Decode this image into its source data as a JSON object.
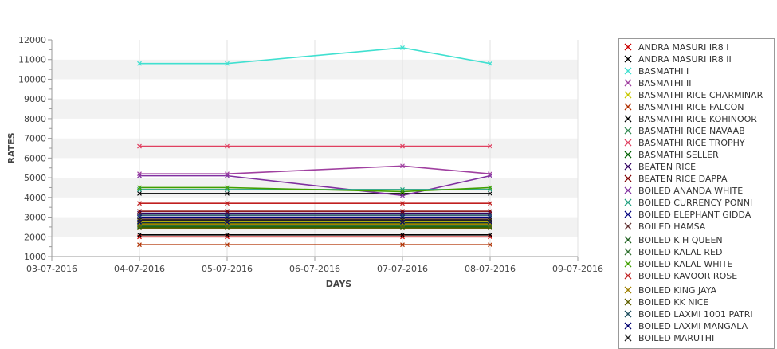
{
  "chart_data": {
    "type": "line",
    "xlabel": "DAYS",
    "ylabel": "RATES",
    "ylim": [
      1000,
      12000
    ],
    "yticks": [
      1000,
      2000,
      3000,
      4000,
      5000,
      6000,
      7000,
      8000,
      9000,
      10000,
      11000,
      12000
    ],
    "x_ticks": [
      "03-07-2016",
      "04-07-2016",
      "05-07-2016",
      "06-07-2016",
      "07-07-2016",
      "08-07-2016",
      "09-07-2016"
    ],
    "xlim": [
      "03-07-2016",
      "09-07-2016"
    ],
    "x": [
      "04-07-2016",
      "05-07-2016",
      "07-07-2016",
      "08-07-2016"
    ],
    "grid": true,
    "legend_position": "right",
    "series": [
      {
        "name": "ANDRA MASURI IR8 I",
        "color": "#cc0000",
        "values": [
          2000,
          2000,
          2000,
          2000
        ]
      },
      {
        "name": "ANDRA MASURI IR8 II",
        "color": "#000000",
        "values": [
          2100,
          2100,
          2100,
          2100
        ]
      },
      {
        "name": "BASMATHI I",
        "color": "#40e0d0",
        "values": [
          10800,
          10800,
          11600,
          10800
        ]
      },
      {
        "name": "BASMATHI II",
        "color": "#a040a0",
        "values": [
          5200,
          5200,
          5600,
          5200
        ]
      },
      {
        "name": "BASMATHI RICE CHARMINAR",
        "color": "#c8c800",
        "values": [
          2800,
          2800,
          2800,
          2800
        ]
      },
      {
        "name": "BASMATHI RICE FALCON",
        "color": "#b03000",
        "values": [
          1600,
          1600,
          1600,
          1600
        ]
      },
      {
        "name": "BASMATHI RICE KOHINOOR",
        "color": "#000000",
        "values": [
          4200,
          4200,
          4200,
          4200
        ]
      },
      {
        "name": "BASMATHI RICE NAVAAB",
        "color": "#308850",
        "values": [
          2600,
          2600,
          2600,
          2600
        ]
      },
      {
        "name": "BASMATHI RICE TROPHY",
        "color": "#e04060",
        "values": [
          6600,
          6600,
          6600,
          6600
        ]
      },
      {
        "name": "BASMATHI SELLER",
        "color": "#006000",
        "values": [
          2500,
          2500,
          2500,
          2500
        ]
      },
      {
        "name": "BEATEN RICE",
        "color": "#300060",
        "values": [
          3200,
          3200,
          3200,
          3200
        ]
      },
      {
        "name": "BEATEN RICE DAPPA",
        "color": "#800000",
        "values": [
          3300,
          3300,
          3300,
          3300
        ]
      },
      {
        "name": "BOILED ANANDA WHITE",
        "color": "#8030a0",
        "values": [
          5100,
          5100,
          4100,
          5100
        ]
      },
      {
        "name": "BOILED CURRENCY PONNI",
        "color": "#20a080",
        "values": [
          4400,
          4400,
          4400,
          4400
        ]
      },
      {
        "name": "BOILED ELEPHANT GIDDA",
        "color": "#000080",
        "values": [
          3000,
          3000,
          3000,
          3000
        ]
      },
      {
        "name": "BOILED HAMSA",
        "color": "#603030",
        "values": [
          2900,
          2900,
          2900,
          2900
        ]
      },
      {
        "name": "BOILED K H QUEEN",
        "color": "#206020",
        "values": [
          2700,
          2700,
          2700,
          2700
        ]
      },
      {
        "name": "BOILED KALAL RED",
        "color": "#307030",
        "values": [
          2550,
          2550,
          2550,
          2550
        ]
      },
      {
        "name": "BOILED KALAL WHITE",
        "color": "#40a000",
        "values": [
          4500,
          4500,
          4300,
          4500
        ]
      },
      {
        "name": "BOILED KAVOOR ROSE",
        "color": "#c02020",
        "values": [
          3700,
          3700,
          3700,
          3700
        ]
      },
      {
        "name": "BOILED KING JAYA",
        "color": "#a08000",
        "values": [
          2650,
          2650,
          2650,
          2650
        ]
      },
      {
        "name": "BOILED KK NICE",
        "color": "#606000",
        "values": [
          2450,
          2450,
          2450,
          2450
        ]
      },
      {
        "name": "BOILED LAXMI 1001 PATRI",
        "color": "#205060",
        "values": [
          3100,
          3100,
          3100,
          3100
        ]
      },
      {
        "name": "BOILED LAXMI MANGALA",
        "color": "#000070",
        "values": [
          2750,
          2750,
          2750,
          2750
        ]
      },
      {
        "name": "BOILED MARUTHI",
        "color": "#202020",
        "values": [
          2850,
          2850,
          2850,
          2850
        ]
      }
    ]
  }
}
